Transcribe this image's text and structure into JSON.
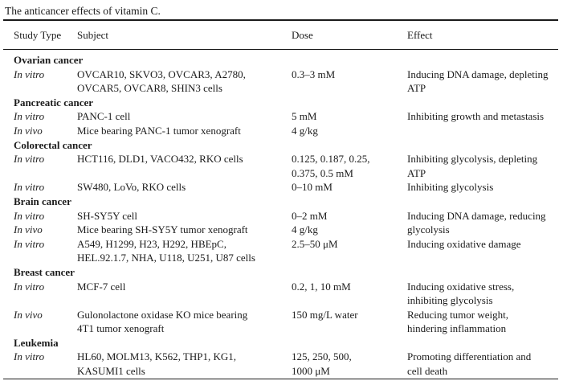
{
  "caption": "The anticancer effects of vitamin C.",
  "table": {
    "columns": [
      "Study Type",
      "Subject",
      "Dose",
      "Effect"
    ],
    "sections": [
      {
        "header": "Ovarian cancer",
        "rows": [
          {
            "study_type": "In vitro",
            "subject_lines": [
              "OVCAR10, SKVO3, OVCAR3, A2780,",
              "OVCAR5, OVCAR8, SHIN3 cells"
            ],
            "dose_lines": [
              "0.3–3 mM"
            ],
            "effect_lines": [
              "Inducing DNA damage, depleting",
              "ATP"
            ]
          }
        ]
      },
      {
        "header": "Pancreatic cancer",
        "rows": [
          {
            "study_type": "In vitro",
            "subject_lines": [
              "PANC-1 cell"
            ],
            "dose_lines": [
              "5 mM"
            ],
            "effect_lines": [
              "Inhibiting growth and metastasis"
            ]
          },
          {
            "study_type": "In vivo",
            "subject_lines": [
              "Mice bearing PANC-1 tumor xenograft"
            ],
            "dose_lines": [
              "4 g/kg"
            ],
            "effect_lines": []
          }
        ]
      },
      {
        "header": "Colorectal cancer",
        "rows": [
          {
            "study_type": "In vitro",
            "subject_lines": [
              "HCT116, DLD1, VACO432, RKO cells"
            ],
            "dose_lines": [
              "0.125, 0.187, 0.25,",
              "0.375, 0.5 mM"
            ],
            "effect_lines": [
              "Inhibiting glycolysis, depleting",
              "ATP"
            ]
          },
          {
            "study_type": "In vitro",
            "subject_lines": [
              "SW480, LoVo, RKO cells"
            ],
            "dose_lines": [
              "0–10 mM"
            ],
            "effect_lines": [
              "Inhibiting glycolysis"
            ]
          }
        ]
      },
      {
        "header": "Brain cancer",
        "rows": [
          {
            "study_type": "In vitro",
            "subject_lines": [
              "SH-SY5Y cell"
            ],
            "dose_lines": [
              "0–2 mM"
            ],
            "effect_lines": [
              "Inducing DNA damage, reducing",
              "glycolysis"
            ],
            "effect_rowspan": 2
          },
          {
            "study_type": "In vivo",
            "subject_lines": [
              "Mice bearing SH-SY5Y tumor xenograft"
            ],
            "dose_lines": [
              "4 g/kg"
            ],
            "effect_skip": true
          },
          {
            "study_type": "In vitro",
            "subject_lines": [
              "A549, H1299, H23, H292, HBEpC,",
              "HEL.92.1.7, NHA, U118, U251, U87 cells"
            ],
            "dose_lines": [
              "2.5–50 μM"
            ],
            "effect_lines": [
              "Inducing oxidative damage"
            ]
          }
        ]
      },
      {
        "header": "Breast cancer",
        "rows": [
          {
            "study_type": "In vitro",
            "subject_lines": [
              "MCF-7 cell"
            ],
            "dose_lines": [
              "0.2, 1, 10 mM"
            ],
            "effect_lines": [
              "Inducing oxidative stress,",
              "inhibiting glycolysis"
            ]
          },
          {
            "study_type": "In vivo",
            "subject_lines": [
              "Gulonolactone oxidase KO mice bearing",
              "4T1 tumor xenograft"
            ],
            "dose_lines": [
              "150 mg/L water"
            ],
            "effect_lines": [
              "Reducing tumor weight,",
              "hindering inflammation"
            ]
          }
        ]
      },
      {
        "header": "Leukemia",
        "rows": [
          {
            "study_type": "In vitro",
            "subject_lines": [
              "HL60, MOLM13, K562, THP1, KG1,",
              "KASUMI1 cells"
            ],
            "dose_lines": [
              "125, 250, 500,",
              "1000 μM"
            ],
            "effect_lines": [
              "Promoting differentiation and",
              "cell death"
            ]
          }
        ]
      }
    ]
  }
}
